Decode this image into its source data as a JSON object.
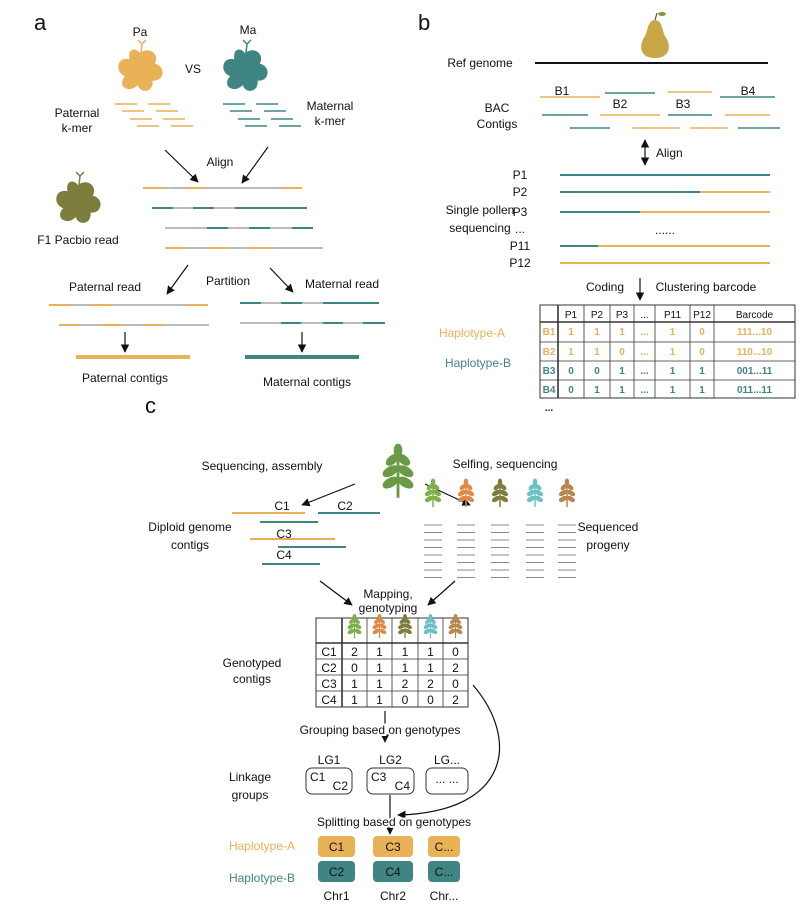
{
  "colors": {
    "paternal": "#E9B256",
    "maternal": "#3F8583",
    "f1": "#7D7E3E",
    "gray": "#BBBBBB",
    "pear": "#C9A646"
  },
  "panel_a": {
    "label": "a",
    "pa": "Pa",
    "ma": "Ma",
    "vs": "VS",
    "paternal_kmer": [
      "Paternal",
      "k-mer"
    ],
    "maternal_kmer": [
      "Maternal",
      "k-mer"
    ],
    "align": "Align",
    "f1": "F1 Pacbio read",
    "partition": "Partition",
    "paternal_read": "Paternal read",
    "maternal_read": "Maternal read",
    "paternal_contigs": "Paternal contigs",
    "maternal_contigs": "Maternal contigs"
  },
  "panel_b": {
    "label": "b",
    "ref_genome": "Ref genome",
    "bac": [
      "BAC",
      "Contigs"
    ],
    "b_labels": [
      "B1",
      "B2",
      "B3",
      "B4"
    ],
    "align": "Align",
    "pollen_labels": [
      "P1",
      "P2",
      "P3",
      "...",
      "P11",
      "P12"
    ],
    "single_pollen": [
      "Single pollen",
      "sequencing"
    ],
    "dots": "......",
    "coding": "Coding",
    "clustering": "Clustering barcode",
    "haplotype_a": "Haplotype-A",
    "haplotype_b": "Haplotype-B",
    "table": {
      "headers": [
        "",
        "P1",
        "P2",
        "P3",
        "...",
        "P11",
        "P12",
        "Barcode"
      ],
      "rows": [
        {
          "hap": "A",
          "cells": [
            "B1",
            "1",
            "1",
            "1",
            "...",
            "1",
            "0",
            "111...10"
          ]
        },
        {
          "hap": "A",
          "cells": [
            "B2",
            "1",
            "1",
            "0",
            "...",
            "1",
            "0",
            "110...10"
          ]
        },
        {
          "hap": "B",
          "cells": [
            "B3",
            "0",
            "0",
            "1",
            "...",
            "1",
            "1",
            "001...11"
          ]
        },
        {
          "hap": "B",
          "cells": [
            "B4",
            "0",
            "1",
            "1",
            "...",
            "1",
            "1",
            "011...11"
          ]
        },
        {
          "hap": "",
          "cells": [
            "...",
            "",
            "",
            "",
            "",
            "",
            "",
            ""
          ]
        }
      ]
    }
  },
  "panel_c": {
    "label": "c",
    "seq_assembly": "Sequencing, assembly",
    "selfing": "Selfing, sequencing",
    "contig_labels": [
      "C1",
      "C2",
      "C3",
      "C4"
    ],
    "diploid": [
      "Diploid genome",
      "contigs"
    ],
    "progeny": [
      "Sequenced",
      "progeny"
    ],
    "mapping": [
      "Mapping,",
      "genotyping"
    ],
    "genotyped": [
      "Genotyped",
      "contigs"
    ],
    "progeny_colors": [
      "#7DB04A",
      "#E08A45",
      "#7D7E3E",
      "#6CC0C8",
      "#B8874E"
    ],
    "genotype_table": {
      "rows": [
        {
          "contig": "C1",
          "values": [
            "2",
            "1",
            "1",
            "1",
            "0"
          ]
        },
        {
          "contig": "C2",
          "values": [
            "0",
            "1",
            "1",
            "1",
            "2"
          ]
        },
        {
          "contig": "C3",
          "values": [
            "1",
            "1",
            "2",
            "2",
            "0"
          ]
        },
        {
          "contig": "C4",
          "values": [
            "1",
            "1",
            "0",
            "0",
            "2"
          ]
        }
      ]
    },
    "grouping": "Grouping based on genotypes",
    "linkage": [
      "Linkage",
      "groups"
    ],
    "lgs": [
      {
        "name": "LG1",
        "a": "C1",
        "b": "C2"
      },
      {
        "name": "LG2",
        "a": "C3",
        "b": "C4"
      },
      {
        "name": "LG...",
        "a": "... ...",
        "b": ""
      }
    ],
    "splitting": "Splitting based on genotypes",
    "haplotype_a": "Haplotype-A",
    "haplotype_b": "Haplotype-B",
    "hap_a_boxes": [
      "C1",
      "C3",
      "C..."
    ],
    "hap_b_boxes": [
      "C2",
      "C4",
      "C..."
    ],
    "chr_labels": [
      "Chr1",
      "Chr2",
      "Chr..."
    ]
  }
}
